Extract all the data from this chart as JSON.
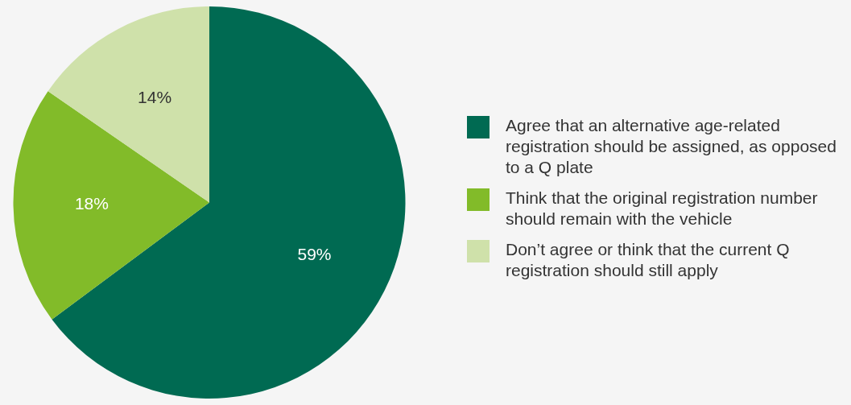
{
  "chart_data": {
    "type": "pie",
    "categories": [
      "Agree that an alternative age-related registration should be assigned, as opposed to a Q plate",
      "Think that the original registration number should remain with the vehicle",
      "Don’t agree or think that the current Q registration should still apply"
    ],
    "values": [
      59,
      18,
      14
    ],
    "colors": [
      "#006a52",
      "#82bb29",
      "#cfe1aa"
    ],
    "value_labels": [
      "59%",
      "18%",
      "14%"
    ],
    "legend": "right"
  }
}
